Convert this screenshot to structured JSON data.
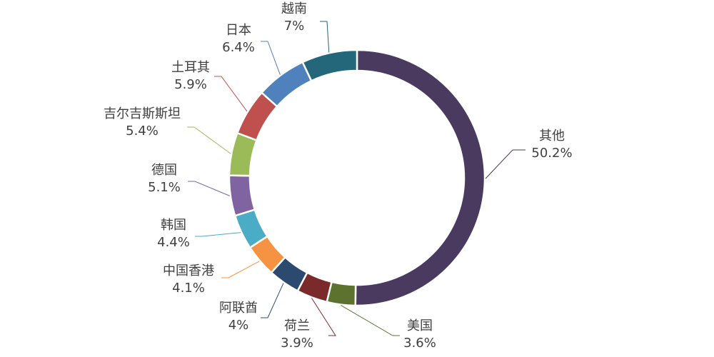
{
  "chart_data": {
    "type": "pie",
    "variant": "donut",
    "title": "",
    "legend": "none",
    "order": "clockwise-from-top",
    "slices": [
      {
        "label": "其他",
        "value": 50.2,
        "value_label": "50.2%",
        "color": "#4a3a5f"
      },
      {
        "label": "美国",
        "value": 3.6,
        "value_label": "3.6%",
        "color": "#5e7230"
      },
      {
        "label": "荷兰",
        "value": 3.9,
        "value_label": "3.9%",
        "color": "#7b2a2b"
      },
      {
        "label": "阿联酋",
        "value": 4.0,
        "value_label": "4%",
        "color": "#2c4a70"
      },
      {
        "label": "中国香港",
        "value": 4.1,
        "value_label": "4.1%",
        "color": "#f59342"
      },
      {
        "label": "韩国",
        "value": 4.4,
        "value_label": "4.4%",
        "color": "#4bacc6"
      },
      {
        "label": "德国",
        "value": 5.1,
        "value_label": "5.1%",
        "color": "#8064a2"
      },
      {
        "label": "吉尔吉斯斯坦",
        "value": 5.4,
        "value_label": "5.4%",
        "color": "#9bbb59"
      },
      {
        "label": "土耳其",
        "value": 5.9,
        "value_label": "5.9%",
        "color": "#c0504d"
      },
      {
        "label": "日本",
        "value": 6.4,
        "value_label": "6.4%",
        "color": "#4f81bd"
      },
      {
        "label": "越南",
        "value": 7.0,
        "value_label": "7%",
        "color": "#24667a"
      }
    ]
  }
}
